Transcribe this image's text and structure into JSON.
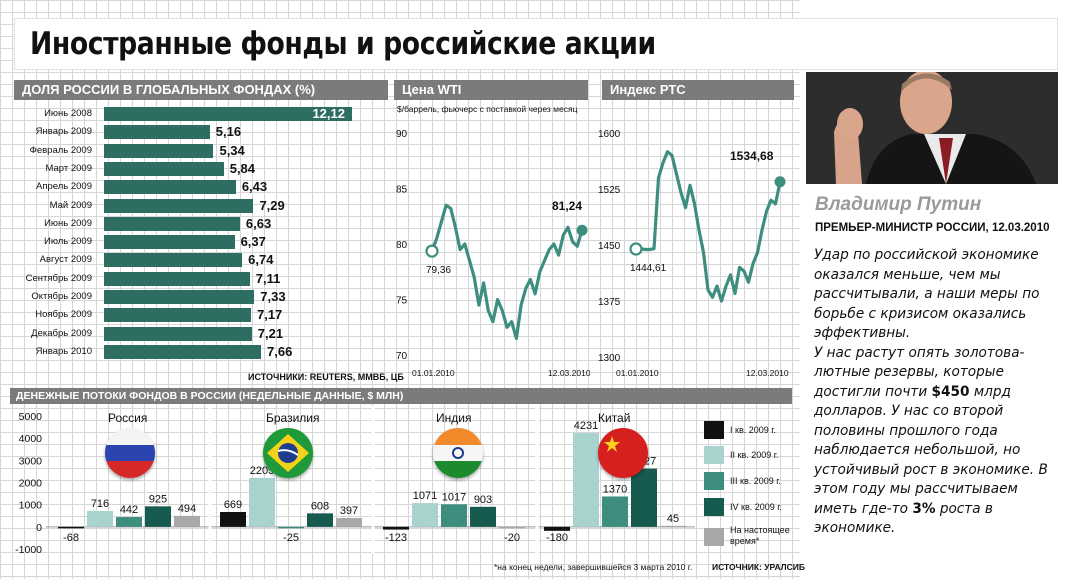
{
  "title": "Иностранные фонды и российские акции",
  "colors": {
    "bar": "#2e6e62",
    "q1": "#111111",
    "q2": "#a9d3cf",
    "q3": "#3e8e80",
    "q4": "#175a50",
    "now": "#a8a8a8",
    "header": "#7b7b7b"
  },
  "share_panel": {
    "header": "ДОЛЯ РОССИИ В ГЛОБАЛЬНЫХ ФОНДАХ (%)",
    "source": "ИСТОЧНИКИ: REUTERS, MMBБ, ЦБ"
  },
  "wti_panel": {
    "header": "Цена WTI",
    "subtitle": "$/баррель, фьючерс с поставкой через месяц",
    "start_label": "79,36",
    "end_label": "81,24",
    "x_start": "01.01.2010",
    "x_end": "12.03.2010"
  },
  "rts_panel": {
    "header": "Индекс РТС",
    "start_label": "1444,61",
    "end_label": "1534,68",
    "x_start": "01.01.2010",
    "x_end": "12.03.2010"
  },
  "flows_panel": {
    "header": "ДЕНЕЖНЫЕ ПОТОКИ ФОНДОВ В РОССИИ (НЕДЕЛЬНЫЕ ДАННЫЕ, $ МЛН)",
    "footnote": "*на конец недели, завершившейся 3 марта 2010 г.",
    "source": "ИСТОЧНИК: УРАЛСИБ"
  },
  "quote_panel": {
    "name": "Владимир Путин",
    "role": "ПРЕМЬЕР-МИНИСТР РОССИИ, 12.03.2010",
    "p1": "Удар по российской экономике оказался меньше, чем мы рассчитывали, а наши меры по борьбе с кризисом оказались эффективны.",
    "p2a": "У нас растут опять золотова-лютные резервы, которые достигли почти ",
    "p2b": "$450",
    "p2c": " млрд долларов. У нас со второй половины прошлого года наблюдается небольшой, но устойчивый рост в экономике. В этом году мы рассчитываем иметь где-то ",
    "p2d": "3%",
    "p2e": " роста в экономике."
  },
  "chart_data": [
    {
      "type": "bar",
      "title": "ДОЛЯ РОССИИ В ГЛОБАЛЬНЫХ ФОНДАХ (%)",
      "orientation": "horizontal",
      "categories": [
        "Июнь 2008",
        "Январь 2009",
        "Февраль 2009",
        "Март 2009",
        "Апрель 2009",
        "Май 2009",
        "Июнь 2009",
        "Июль 2009",
        "Август 2009",
        "Сентябрь 2009",
        "Октябрь 2009",
        "Ноябрь 2009",
        "Декабрь 2009",
        "Январь 2010"
      ],
      "values": [
        12.12,
        5.16,
        5.34,
        5.84,
        6.43,
        7.29,
        6.63,
        6.37,
        6.74,
        7.11,
        7.33,
        7.17,
        7.21,
        7.66
      ],
      "value_labels": [
        "12,12",
        "5,16",
        "5,34",
        "5,84",
        "6,43",
        "7,29",
        "6,63",
        "6,37",
        "6,74",
        "7,11",
        "7,33",
        "7,17",
        "7,21",
        "7,66"
      ]
    },
    {
      "type": "line",
      "title": "Цена WTI",
      "ylabel": "$/баррель, фьючерс с поставкой через месяц",
      "x_range": [
        "01.01.2010",
        "12.03.2010"
      ],
      "ylim": [
        70,
        90
      ],
      "yticks": [
        90,
        85,
        80,
        75,
        70
      ],
      "values": [
        79.36,
        80.5,
        82.0,
        83.5,
        83.2,
        81.5,
        79.5,
        80.0,
        78.5,
        77.0,
        74.5,
        76.5,
        74.0,
        73.0,
        75.0,
        74.0,
        72.5,
        73.0,
        71.5,
        74.5,
        76.0,
        76.8,
        75.5,
        77.5,
        78.5,
        79.5,
        80.0,
        79.0,
        80.8,
        81.5,
        80.2,
        79.8,
        81.24
      ]
    },
    {
      "type": "line",
      "title": "Индекс РТС",
      "x_range": [
        "01.01.2010",
        "12.03.2010"
      ],
      "ylim": [
        1300,
        1600
      ],
      "yticks": [
        1600,
        1525,
        1450,
        1375,
        1300
      ],
      "values": [
        1444.61,
        1445,
        1444,
        1444,
        1445,
        1540,
        1560,
        1575,
        1570,
        1545,
        1520,
        1500,
        1530,
        1505,
        1470,
        1440,
        1390,
        1380,
        1395,
        1375,
        1395,
        1410,
        1385,
        1420,
        1415,
        1400,
        1425,
        1440,
        1470,
        1495,
        1510,
        1505,
        1534.68
      ]
    },
    {
      "type": "bar",
      "title": "ДЕНЕЖНЫЕ ПОТОКИ ФОНДОВ В РОССИИ (НЕДЕЛЬНЫЕ ДАННЫЕ, $ МЛН)",
      "ylim": [
        -1000,
        5000
      ],
      "yticks": [
        5000,
        4000,
        3000,
        2000,
        1000,
        0,
        -1000
      ],
      "categories": [
        "Россия",
        "Бразилия",
        "Индия",
        "Китай"
      ],
      "series": [
        {
          "name": "I кв. 2009 г.",
          "values": [
            -68,
            669,
            -123,
            -180
          ]
        },
        {
          "name": "II кв. 2009 г.",
          "values": [
            716,
            2205,
            1071,
            4231
          ]
        },
        {
          "name": "III кв. 2009 г.",
          "values": [
            442,
            -25,
            1017,
            1370
          ]
        },
        {
          "name": "IV кв. 2009 г.",
          "values": [
            925,
            608,
            903,
            2627
          ]
        },
        {
          "name": "На настоящее время*",
          "values": [
            494,
            397,
            -20,
            45
          ]
        }
      ]
    }
  ]
}
